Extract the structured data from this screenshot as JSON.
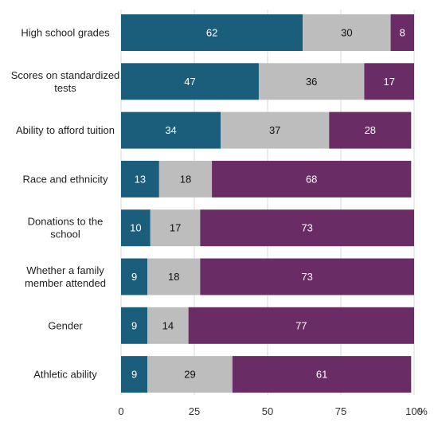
{
  "chart_data": {
    "type": "bar",
    "orientation": "horizontal",
    "stacked": true,
    "categories": [
      "High school grades",
      "Scores on standardized tests",
      "Ability to afford tuition",
      "Race and ethnicity",
      "Donations to the school",
      "Whether a family member attended",
      "Gender",
      "Athletic ability"
    ],
    "category_lines": [
      [
        "High school grades"
      ],
      [
        "Scores on standardized",
        "tests"
      ],
      [
        "Ability to afford tuition"
      ],
      [
        "Race and ethnicity"
      ],
      [
        "Donations to the",
        "school"
      ],
      [
        "Whether a family",
        "member attended"
      ],
      [
        "Gender"
      ],
      [
        "Athletic ability"
      ]
    ],
    "series": [
      {
        "values": [
          62,
          47,
          34,
          13,
          10,
          9,
          9,
          9
        ],
        "color": "#1b5e7b",
        "label_color": "#ffffff"
      },
      {
        "values": [
          30,
          36,
          37,
          18,
          17,
          18,
          14,
          29
        ],
        "color": "#bdbdbd",
        "label_color": "#111111"
      },
      {
        "values": [
          8,
          17,
          28,
          68,
          73,
          73,
          77,
          61
        ],
        "color": "#6a2c64",
        "label_color": "#ffffff"
      }
    ],
    "xlim": [
      0,
      100
    ],
    "ticks": [
      0,
      25,
      50,
      75,
      100
    ],
    "tick_labels": [
      "0",
      "25",
      "50",
      "75",
      "100"
    ],
    "axis_unit": "%",
    "grid": true,
    "legend": "none"
  }
}
